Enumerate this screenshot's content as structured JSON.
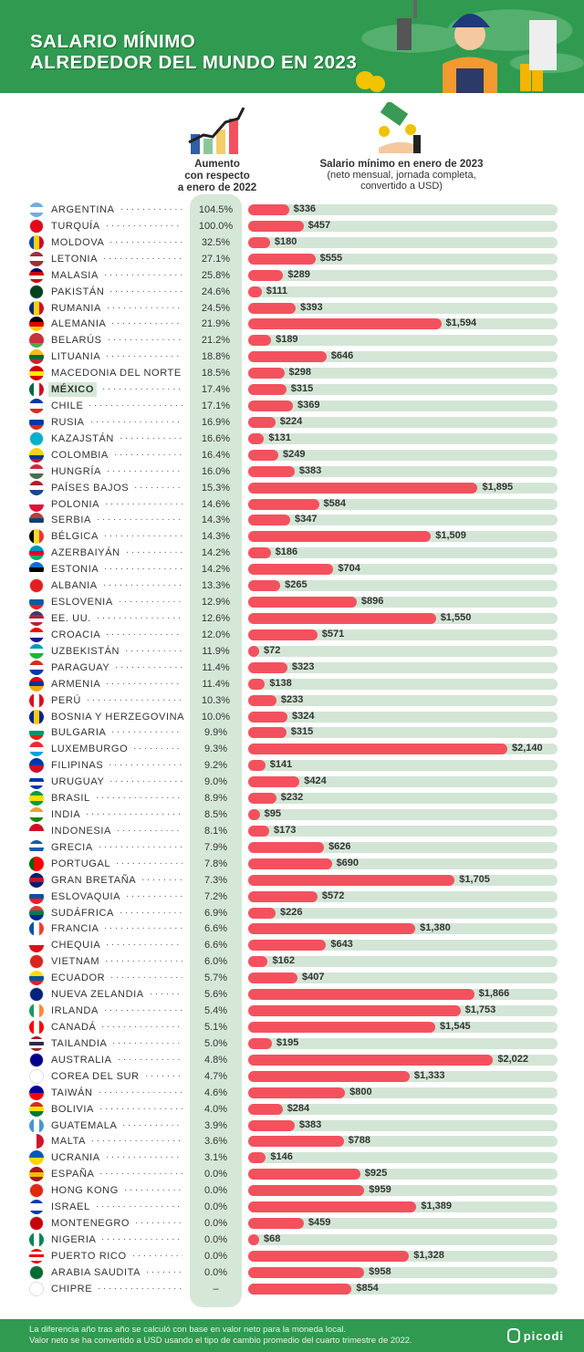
{
  "header": {
    "title_line1": "SALARIO MÍNIMO",
    "title_line2": "ALREDEDOR DEL MUNDO EN 2023"
  },
  "col1": {
    "line1": "Aumento",
    "line2": "con respecto",
    "line3": "a enero de 2022"
  },
  "col2": {
    "title": "Salario mínimo en enero de 2023",
    "sub1": "(neto mensual, jornada completa,",
    "sub2": "convertido a USD)"
  },
  "footer": {
    "line1": "La diferencia año tras año se calculó con base en valor neto para la moneda local.",
    "line2": "Valor neto se ha convertido a USD usando el tipo de cambio promedio del cuarto trimestre de 2022.",
    "logo": "picodi"
  },
  "colors": {
    "bar": "#f4515e",
    "track": "#d3e6d6",
    "header": "#2f9a50"
  },
  "chart_data": {
    "type": "bar",
    "orientation": "horizontal",
    "highlight": "MÉXICO",
    "rows": [
      {
        "country": "ARGENTINA",
        "change": "104.5%",
        "wage": 336,
        "label": "$336",
        "flag": [
          "#74acdf",
          "#fff",
          "#74acdf"
        ]
      },
      {
        "country": "TURQUÍA",
        "change": "100.0%",
        "wage": 457,
        "label": "$457",
        "flag": [
          "#e30a17"
        ]
      },
      {
        "country": "MOLDOVA",
        "change": "32.5%",
        "wage": 180,
        "label": "$180",
        "flag": [
          "#0046ae",
          "#ffd200",
          "#cc092f"
        ],
        "v": 1
      },
      {
        "country": "LETONIA",
        "change": "27.1%",
        "wage": 555,
        "label": "$555",
        "flag": [
          "#9e3039",
          "#fff",
          "#9e3039"
        ]
      },
      {
        "country": "MALASIA",
        "change": "25.8%",
        "wage": 289,
        "label": "$289",
        "flag": [
          "#010066",
          "#cc0001",
          "#fff",
          "#cc0001"
        ]
      },
      {
        "country": "PAKISTÁN",
        "change": "24.6%",
        "wage": 111,
        "label": "$111",
        "flag": [
          "#01411c"
        ]
      },
      {
        "country": "RUMANIA",
        "change": "24.5%",
        "wage": 393,
        "label": "$393",
        "flag": [
          "#002b7f",
          "#fcd116",
          "#ce1126"
        ],
        "v": 1
      },
      {
        "country": "ALEMANIA",
        "change": "21.9%",
        "wage": 1594,
        "label": "$1,594",
        "flag": [
          "#000",
          "#dd0000",
          "#ffce00"
        ]
      },
      {
        "country": "BELARÚS",
        "change": "21.2%",
        "wage": 189,
        "label": "$189",
        "flag": [
          "#c8313e",
          "#c8313e",
          "#4aa657"
        ]
      },
      {
        "country": "LITUANIA",
        "change": "18.8%",
        "wage": 646,
        "label": "$646",
        "flag": [
          "#fdb913",
          "#006a44",
          "#c1272d"
        ]
      },
      {
        "country": "MACEDONIA DEL NORTE",
        "change": "18.5%",
        "wage": 298,
        "label": "$298",
        "flag": [
          "#d20000",
          "#ffe600",
          "#d20000"
        ]
      },
      {
        "country": "MÉXICO",
        "change": "17.4%",
        "wage": 315,
        "label": "$315",
        "flag": [
          "#006847",
          "#fff",
          "#ce1126"
        ],
        "v": 1
      },
      {
        "country": "CHILE",
        "change": "17.1%",
        "wage": 369,
        "label": "$369",
        "flag": [
          "#0039a6",
          "#fff",
          "#d52b1e"
        ]
      },
      {
        "country": "RUSIA",
        "change": "16.9%",
        "wage": 224,
        "label": "$224",
        "flag": [
          "#fff",
          "#0039a6",
          "#d52b1e"
        ]
      },
      {
        "country": "KAZAJSTÁN",
        "change": "16.6%",
        "wage": 131,
        "label": "$131",
        "flag": [
          "#00afca"
        ]
      },
      {
        "country": "COLOMBIA",
        "change": "16.4%",
        "wage": 249,
        "label": "$249",
        "flag": [
          "#fcd116",
          "#fcd116",
          "#003893",
          "#ce1126"
        ]
      },
      {
        "country": "HUNGRÍA",
        "change": "16.0%",
        "wage": 383,
        "label": "$383",
        "flag": [
          "#ce2939",
          "#fff",
          "#477050"
        ]
      },
      {
        "country": "PAÍSES BAJOS",
        "change": "15.3%",
        "wage": 1895,
        "label": "$1,895",
        "flag": [
          "#ae1c28",
          "#fff",
          "#21468b"
        ]
      },
      {
        "country": "POLONIA",
        "change": "14.6%",
        "wage": 584,
        "label": "$584",
        "flag": [
          "#fff",
          "#dc143c"
        ]
      },
      {
        "country": "SERBIA",
        "change": "14.3%",
        "wage": 347,
        "label": "$347",
        "flag": [
          "#c6363c",
          "#0c4076",
          "#fff"
        ]
      },
      {
        "country": "BÉLGICA",
        "change": "14.3%",
        "wage": 1509,
        "label": "$1,509",
        "flag": [
          "#000",
          "#fdda24",
          "#ef3340"
        ],
        "v": 1
      },
      {
        "country": "AZERBAIYÁN",
        "change": "14.2%",
        "wage": 186,
        "label": "$186",
        "flag": [
          "#0092bc",
          "#e4002b",
          "#00af66"
        ]
      },
      {
        "country": "ESTONIA",
        "change": "14.2%",
        "wage": 704,
        "label": "$704",
        "flag": [
          "#0072ce",
          "#000",
          "#fff"
        ]
      },
      {
        "country": "ALBANIA",
        "change": "13.3%",
        "wage": 265,
        "label": "$265",
        "flag": [
          "#e41e20"
        ]
      },
      {
        "country": "ESLOVENIA",
        "change": "12.9%",
        "wage": 896,
        "label": "$896",
        "flag": [
          "#fff",
          "#005da4",
          "#ed1c24"
        ]
      },
      {
        "country": "EE. UU.",
        "change": "12.6%",
        "wage": 1550,
        "label": "$1,550",
        "flag": [
          "#3c3b6e",
          "#b22234",
          "#fff",
          "#b22234"
        ]
      },
      {
        "country": "CROACIA",
        "change": "12.0%",
        "wage": 571,
        "label": "$571",
        "flag": [
          "#ff0000",
          "#fff",
          "#171796"
        ]
      },
      {
        "country": "UZBEKISTÁN",
        "change": "11.9%",
        "wage": 72,
        "label": "$72",
        "flag": [
          "#0099b5",
          "#fff",
          "#1eb53a"
        ]
      },
      {
        "country": "PARAGUAY",
        "change": "11.4%",
        "wage": 323,
        "label": "$323",
        "flag": [
          "#d52b1e",
          "#fff",
          "#0038a8"
        ]
      },
      {
        "country": "ARMENIA",
        "change": "11.4%",
        "wage": 138,
        "label": "$138",
        "flag": [
          "#d90012",
          "#0033a0",
          "#f2a800"
        ]
      },
      {
        "country": "PERÚ",
        "change": "10.3%",
        "wage": 233,
        "label": "$233",
        "flag": [
          "#d91023",
          "#fff",
          "#d91023"
        ],
        "v": 1
      },
      {
        "country": "BOSNIA Y HERZEGOVINA",
        "change": "10.0%",
        "wage": 324,
        "label": "$324",
        "flag": [
          "#002395",
          "#fecb00",
          "#002395"
        ],
        "v": 1
      },
      {
        "country": "BULGARIA",
        "change": "9.9%",
        "wage": 315,
        "label": "$315",
        "flag": [
          "#fff",
          "#00966e",
          "#d62612"
        ]
      },
      {
        "country": "LUXEMBURGO",
        "change": "9.3%",
        "wage": 2140,
        "label": "$2,140",
        "flag": [
          "#ed2939",
          "#fff",
          "#00a1de"
        ]
      },
      {
        "country": "FILIPINAS",
        "change": "9.2%",
        "wage": 141,
        "label": "$141",
        "flag": [
          "#0038a8",
          "#ce1126"
        ]
      },
      {
        "country": "URUGUAY",
        "change": "9.0%",
        "wage": 424,
        "label": "$424",
        "flag": [
          "#fff",
          "#0038a8",
          "#fff",
          "#0038a8"
        ]
      },
      {
        "country": "BRASIL",
        "change": "8.9%",
        "wage": 232,
        "label": "$232",
        "flag": [
          "#009c3b",
          "#ffdf00",
          "#009c3b"
        ]
      },
      {
        "country": "INDIA",
        "change": "8.5%",
        "wage": 95,
        "label": "$95",
        "flag": [
          "#ff9933",
          "#fff",
          "#138808"
        ]
      },
      {
        "country": "INDONESIA",
        "change": "8.1%",
        "wage": 173,
        "label": "$173",
        "flag": [
          "#ce1126",
          "#fff"
        ]
      },
      {
        "country": "GRECIA",
        "change": "7.9%",
        "wage": 626,
        "label": "$626",
        "flag": [
          "#0d5eaf",
          "#fff",
          "#0d5eaf",
          "#fff"
        ]
      },
      {
        "country": "PORTUGAL",
        "change": "7.8%",
        "wage": 690,
        "label": "$690",
        "flag": [
          "#006600",
          "#ff0000",
          "#ff0000"
        ],
        "v": 1
      },
      {
        "country": "GRAN BRETAÑA",
        "change": "7.3%",
        "wage": 1705,
        "label": "$1,705",
        "flag": [
          "#012169",
          "#c8102e",
          "#012169"
        ]
      },
      {
        "country": "ESLOVAQUIA",
        "change": "7.2%",
        "wage": 572,
        "label": "$572",
        "flag": [
          "#fff",
          "#0b4ea2",
          "#ee1c25"
        ]
      },
      {
        "country": "SUDÁFRICA",
        "change": "6.9%",
        "wage": 226,
        "label": "$226",
        "flag": [
          "#de3831",
          "#007a4d",
          "#002395"
        ]
      },
      {
        "country": "FRANCIA",
        "change": "6.6%",
        "wage": 1380,
        "label": "$1,380",
        "flag": [
          "#0055a4",
          "#fff",
          "#ef4135"
        ],
        "v": 1
      },
      {
        "country": "CHEQUIA",
        "change": "6.6%",
        "wage": 643,
        "label": "$643",
        "flag": [
          "#fff",
          "#d7141a"
        ]
      },
      {
        "country": "VIETNAM",
        "change": "6.0%",
        "wage": 162,
        "label": "$162",
        "flag": [
          "#da251d"
        ]
      },
      {
        "country": "ECUADOR",
        "change": "5.7%",
        "wage": 407,
        "label": "$407",
        "flag": [
          "#ffdd00",
          "#034ea2",
          "#ed1c24"
        ]
      },
      {
        "country": "NUEVA ZELANDIA",
        "change": "5.6%",
        "wage": 1866,
        "label": "$1,866",
        "flag": [
          "#00247d"
        ]
      },
      {
        "country": "IRLANDA",
        "change": "5.4%",
        "wage": 1753,
        "label": "$1,753",
        "flag": [
          "#169b62",
          "#fff",
          "#ff883e"
        ],
        "v": 1
      },
      {
        "country": "CANADÁ",
        "change": "5.1%",
        "wage": 1545,
        "label": "$1,545",
        "flag": [
          "#ff0000",
          "#fff",
          "#ff0000"
        ],
        "v": 1
      },
      {
        "country": "TAILANDIA",
        "change": "5.0%",
        "wage": 195,
        "label": "$195",
        "flag": [
          "#a51931",
          "#fff",
          "#2d2a4a",
          "#fff",
          "#a51931"
        ]
      },
      {
        "country": "AUSTRALIA",
        "change": "4.8%",
        "wage": 2022,
        "label": "$2,022",
        "flag": [
          "#00008b"
        ]
      },
      {
        "country": "COREA DEL SUR",
        "change": "4.7%",
        "wage": 1333,
        "label": "$1,333",
        "flag": [
          "#fff"
        ]
      },
      {
        "country": "TAIWÁN",
        "change": "4.6%",
        "wage": 800,
        "label": "$800",
        "flag": [
          "#000095",
          "#fe0000"
        ]
      },
      {
        "country": "BOLIVIA",
        "change": "4.0%",
        "wage": 284,
        "label": "$284",
        "flag": [
          "#d52b1e",
          "#f9e300",
          "#007934"
        ]
      },
      {
        "country": "GUATEMALA",
        "change": "3.9%",
        "wage": 383,
        "label": "$383",
        "flag": [
          "#4997d0",
          "#fff",
          "#4997d0"
        ],
        "v": 1
      },
      {
        "country": "MALTA",
        "change": "3.6%",
        "wage": 788,
        "label": "$788",
        "flag": [
          "#fff",
          "#cf142b"
        ],
        "v": 1
      },
      {
        "country": "UCRANIA",
        "change": "3.1%",
        "wage": 146,
        "label": "$146",
        "flag": [
          "#0057b7",
          "#ffd700"
        ]
      },
      {
        "country": "ESPAÑA",
        "change": "0.0%",
        "wage": 925,
        "label": "$925",
        "flag": [
          "#aa151b",
          "#f1bf00",
          "#aa151b"
        ]
      },
      {
        "country": "HONG KONG",
        "change": "0.0%",
        "wage": 959,
        "label": "$959",
        "flag": [
          "#de2910"
        ]
      },
      {
        "country": "ISRAEL",
        "change": "0.0%",
        "wage": 1389,
        "label": "$1,389",
        "flag": [
          "#0038b8",
          "#fff",
          "#fff",
          "#0038b8"
        ]
      },
      {
        "country": "MONTENEGRO",
        "change": "0.0%",
        "wage": 459,
        "label": "$459",
        "flag": [
          "#c40308"
        ]
      },
      {
        "country": "NIGERIA",
        "change": "0.0%",
        "wage": 68,
        "label": "$68",
        "flag": [
          "#008751",
          "#fff",
          "#008751"
        ],
        "v": 1
      },
      {
        "country": "PUERTO RICO",
        "change": "0.0%",
        "wage": 1328,
        "label": "$1,328",
        "flag": [
          "#ed0000",
          "#fff",
          "#ed0000",
          "#fff",
          "#ed0000"
        ]
      },
      {
        "country": "ARABIA SAUDITA",
        "change": "0.0%",
        "wage": 958,
        "label": "$958",
        "flag": [
          "#006c35"
        ]
      },
      {
        "country": "CHIPRE",
        "change": "–",
        "wage": 854,
        "label": "$854",
        "flag": [
          "#fff"
        ]
      }
    ]
  }
}
